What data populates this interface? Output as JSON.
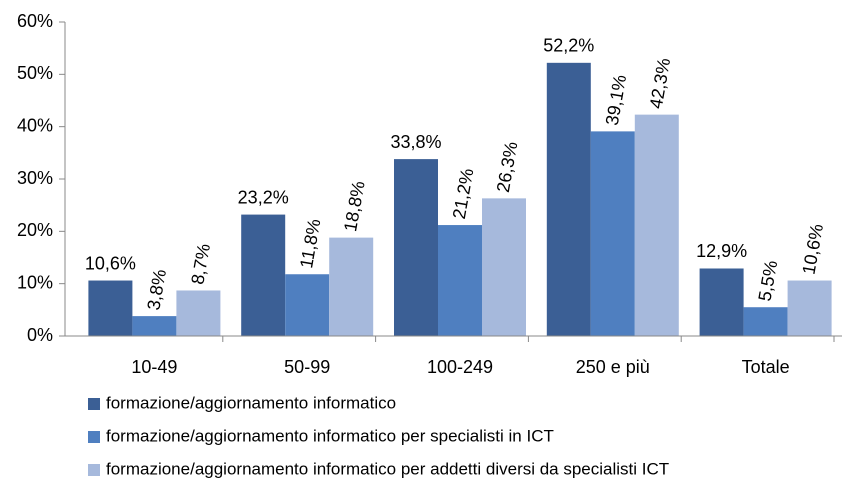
{
  "chart_data": {
    "type": "bar",
    "categories": [
      "10-49",
      "50-99",
      "100-249",
      "250 e più",
      "Totale"
    ],
    "series": [
      {
        "name": "formazione/aggiornamento informatico",
        "color": "#3b5f95",
        "values": [
          10.6,
          23.2,
          33.8,
          52.2,
          12.9
        ],
        "value_labels": [
          "10,6%",
          "23,2%",
          "33,8%",
          "52,2%",
          "12,9%"
        ]
      },
      {
        "name": "formazione/aggiornamento informatico per specialisti in ICT",
        "color": "#4f7fc0",
        "values": [
          3.8,
          11.8,
          21.2,
          39.1,
          5.5
        ],
        "value_labels": [
          "3,8%",
          "11,8%",
          "21,2%",
          "39,1%",
          "5,5%"
        ]
      },
      {
        "name": "formazione/aggiornamento informatico per addetti diversi da specialisti ICT",
        "color": "#a6b9dc",
        "values": [
          8.7,
          18.8,
          26.3,
          42.3,
          10.6
        ],
        "value_labels": [
          "8,7%",
          "18,8%",
          "26,3%",
          "42,3%",
          "10,6%"
        ]
      }
    ],
    "ylim": [
      0,
      60
    ],
    "yticks": [
      {
        "value": 0,
        "label": "0%"
      },
      {
        "value": 10,
        "label": "10%"
      },
      {
        "value": 20,
        "label": "20%"
      },
      {
        "value": 30,
        "label": "30%"
      },
      {
        "value": 40,
        "label": "40%"
      },
      {
        "value": 50,
        "label": "50%"
      },
      {
        "value": 60,
        "label": "60%"
      }
    ],
    "legend": "bottom"
  }
}
